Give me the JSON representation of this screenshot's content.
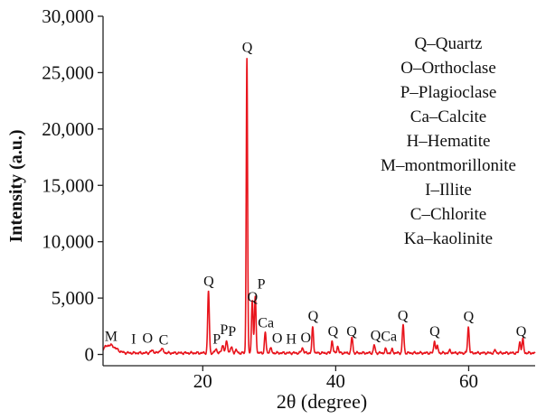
{
  "chart_data": {
    "type": "line",
    "title": "",
    "xlabel": "2θ (degree)",
    "ylabel": "Intensity (a.u.)",
    "xlim": [
      5,
      70
    ],
    "ylim": [
      -1000,
      30000
    ],
    "x_ticks": [
      20,
      40,
      60
    ],
    "x_tick_labels": [
      "20",
      "40",
      "60"
    ],
    "y_ticks": [
      0,
      5000,
      10000,
      15000,
      20000,
      25000,
      30000
    ],
    "y_tick_labels": [
      "0",
      "5,000",
      "10,000",
      "15,000",
      "20,000",
      "25,000",
      "30,000"
    ],
    "grid": false,
    "legend_position": "top-right",
    "series": [
      {
        "color": "#e8141c",
        "peaks": [
          {
            "x": 6.0,
            "y": 700,
            "w": 0.9
          },
          {
            "x": 12.4,
            "y": 200,
            "w": 0.25
          },
          {
            "x": 13.8,
            "y": 350,
            "w": 0.25
          },
          {
            "x": 20.86,
            "y": 5500,
            "w": 0.12
          },
          {
            "x": 22.0,
            "y": 350,
            "w": 0.15
          },
          {
            "x": 23.0,
            "y": 700,
            "w": 0.15
          },
          {
            "x": 23.6,
            "y": 1000,
            "w": 0.15
          },
          {
            "x": 24.3,
            "y": 500,
            "w": 0.15
          },
          {
            "x": 25.0,
            "y": 250,
            "w": 0.15
          },
          {
            "x": 26.64,
            "y": 26200,
            "w": 0.1
          },
          {
            "x": 27.45,
            "y": 4700,
            "w": 0.12
          },
          {
            "x": 27.9,
            "y": 5000,
            "w": 0.12
          },
          {
            "x": 29.4,
            "y": 1800,
            "w": 0.12
          },
          {
            "x": 30.2,
            "y": 400,
            "w": 0.15
          },
          {
            "x": 35.0,
            "y": 450,
            "w": 0.15
          },
          {
            "x": 36.54,
            "y": 2300,
            "w": 0.12
          },
          {
            "x": 39.46,
            "y": 1100,
            "w": 0.12
          },
          {
            "x": 40.3,
            "y": 600,
            "w": 0.12
          },
          {
            "x": 42.45,
            "y": 1400,
            "w": 0.12
          },
          {
            "x": 45.8,
            "y": 700,
            "w": 0.12
          },
          {
            "x": 47.5,
            "y": 350,
            "w": 0.12
          },
          {
            "x": 48.5,
            "y": 300,
            "w": 0.12
          },
          {
            "x": 50.14,
            "y": 2500,
            "w": 0.12
          },
          {
            "x": 54.87,
            "y": 1100,
            "w": 0.12
          },
          {
            "x": 55.3,
            "y": 600,
            "w": 0.12
          },
          {
            "x": 57.2,
            "y": 250,
            "w": 0.12
          },
          {
            "x": 59.96,
            "y": 2300,
            "w": 0.12
          },
          {
            "x": 64.0,
            "y": 250,
            "w": 0.12
          },
          {
            "x": 67.7,
            "y": 1000,
            "w": 0.12
          },
          {
            "x": 68.15,
            "y": 1200,
            "w": 0.12
          }
        ]
      }
    ],
    "peak_labels": [
      {
        "text": "M",
        "x": 6.2,
        "y": 1200
      },
      {
        "text": "I",
        "x": 9.6,
        "y": 950
      },
      {
        "text": "O",
        "x": 11.7,
        "y": 1050
      },
      {
        "text": "C",
        "x": 14.1,
        "y": 900
      },
      {
        "text": "Q",
        "x": 20.9,
        "y": 6100
      },
      {
        "text": "P",
        "x": 22.1,
        "y": 950
      },
      {
        "text": "P",
        "x": 23.2,
        "y": 1800
      },
      {
        "text": "P",
        "x": 24.4,
        "y": 1650
      },
      {
        "text": "Q",
        "x": 26.7,
        "y": 26850
      },
      {
        "text": "Q",
        "x": 27.5,
        "y": 4700
      },
      {
        "text": "P",
        "x": 28.8,
        "y": 5850
      },
      {
        "text": "Ca",
        "x": 29.5,
        "y": 2400
      },
      {
        "text": "O",
        "x": 31.2,
        "y": 1050
      },
      {
        "text": "H",
        "x": 33.3,
        "y": 950
      },
      {
        "text": "O",
        "x": 35.5,
        "y": 1100
      },
      {
        "text": "Q",
        "x": 36.6,
        "y": 3000
      },
      {
        "text": "Q",
        "x": 39.6,
        "y": 1650
      },
      {
        "text": "Q",
        "x": 42.4,
        "y": 1650
      },
      {
        "text": "Q",
        "x": 46.0,
        "y": 1300
      },
      {
        "text": "Ca",
        "x": 48.0,
        "y": 1200
      },
      {
        "text": "Q",
        "x": 50.1,
        "y": 3050
      },
      {
        "text": "Q",
        "x": 54.9,
        "y": 1650
      },
      {
        "text": "Q",
        "x": 60.0,
        "y": 2950
      },
      {
        "text": "Q",
        "x": 67.9,
        "y": 1650
      }
    ],
    "legend_entries": [
      "Q–Quartz",
      "O–Orthoclase",
      "P–Plagioclase",
      "Ca–Calcite",
      "H–Hematite",
      "M–montmorillonite",
      "I–Illite",
      "C–Chlorite",
      "Ka–kaolinite"
    ]
  }
}
